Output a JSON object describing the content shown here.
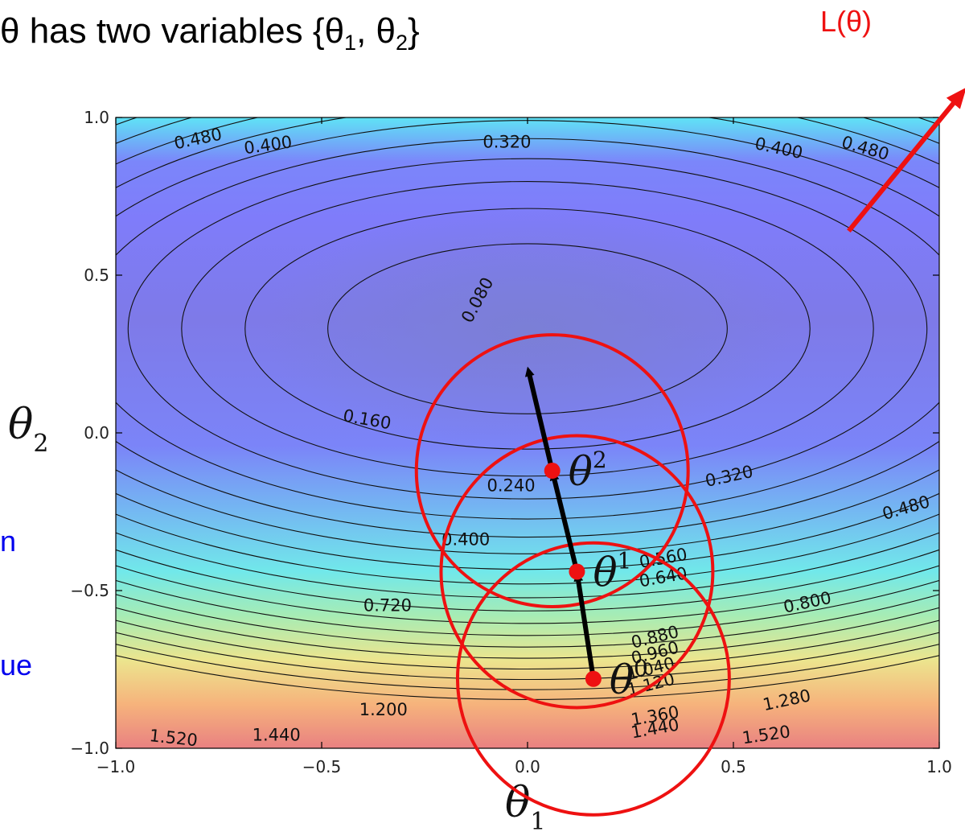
{
  "slide": {
    "title_main": "θ has two variables {θ",
    "title_sub1": "1",
    "title_mid": ", θ",
    "title_sub2": "2",
    "title_end": "}",
    "callout_label": "L(θ)",
    "left_fragment_1": "n",
    "left_fragment_2": "ue",
    "xaxis_symbol": "θ",
    "xaxis_sub": "1",
    "yaxis_symbol": "θ",
    "yaxis_sub": "2",
    "callout_color": "#ee1111",
    "fragment_color": "#0000ee"
  },
  "chart_data": {
    "type": "contour",
    "xlim": [
      -1.0,
      1.0
    ],
    "ylim": [
      -1.0,
      1.0
    ],
    "xticks": [
      "−1.0",
      "−0.5",
      "0.0",
      "0.5",
      "1.0"
    ],
    "yticks": [
      "1.0",
      "0.5",
      "0.0",
      "−0.5",
      "−1.0"
    ],
    "xtick_values": [
      -1.0,
      -0.5,
      0.0,
      0.5,
      1.0
    ],
    "ytick_values": [
      1.0,
      0.5,
      0.0,
      -0.5,
      -1.0
    ],
    "minimum": [
      0.0,
      0.33
    ],
    "contour_levels": [
      0.08,
      0.16,
      0.24,
      0.32,
      0.4,
      0.48,
      0.56,
      0.64,
      0.72,
      0.8,
      0.88,
      0.96,
      1.04,
      1.12,
      1.2,
      1.28,
      1.36,
      1.44,
      1.52
    ],
    "contour_labels": [
      {
        "text": "0.480",
        "x": -0.8,
        "y": 0.93,
        "rot": -12
      },
      {
        "text": "0.400",
        "x": -0.63,
        "y": 0.91,
        "rot": -8
      },
      {
        "text": "0.320",
        "x": -0.05,
        "y": 0.92,
        "rot": 0
      },
      {
        "text": "0.400",
        "x": 0.61,
        "y": 0.9,
        "rot": 12
      },
      {
        "text": "0.480",
        "x": 0.82,
        "y": 0.9,
        "rot": 16
      },
      {
        "text": "0.080",
        "x": -0.12,
        "y": 0.42,
        "rot": -62
      },
      {
        "text": "0.160",
        "x": -0.39,
        "y": 0.04,
        "rot": 10
      },
      {
        "text": "0.240",
        "x": -0.04,
        "y": -0.17,
        "rot": 0
      },
      {
        "text": "0.320",
        "x": 0.49,
        "y": -0.14,
        "rot": -12
      },
      {
        "text": "0.480",
        "x": 0.92,
        "y": -0.24,
        "rot": -16
      },
      {
        "text": "0.400",
        "x": -0.15,
        "y": -0.34,
        "rot": 0
      },
      {
        "text": "0.560",
        "x": 0.33,
        "y": -0.4,
        "rot": -10
      },
      {
        "text": "0.640",
        "x": 0.33,
        "y": -0.46,
        "rot": -10
      },
      {
        "text": "0.720",
        "x": -0.34,
        "y": -0.55,
        "rot": 0
      },
      {
        "text": "0.800",
        "x": 0.68,
        "y": -0.54,
        "rot": -12
      },
      {
        "text": "0.880",
        "x": 0.31,
        "y": -0.65,
        "rot": -14
      },
      {
        "text": "0.960",
        "x": 0.31,
        "y": -0.7,
        "rot": -14
      },
      {
        "text": "1.040",
        "x": 0.3,
        "y": -0.75,
        "rot": -14
      },
      {
        "text": "1.120",
        "x": 0.3,
        "y": -0.8,
        "rot": -14
      },
      {
        "text": "1.200",
        "x": -0.35,
        "y": -0.88,
        "rot": 0
      },
      {
        "text": "1.280",
        "x": 0.63,
        "y": -0.85,
        "rot": -12
      },
      {
        "text": "1.360",
        "x": 0.31,
        "y": -0.9,
        "rot": -10
      },
      {
        "text": "1.440",
        "x": 0.31,
        "y": -0.94,
        "rot": -10
      },
      {
        "text": "1.440",
        "x": -0.61,
        "y": -0.96,
        "rot": 0
      },
      {
        "text": "1.520",
        "x": -0.86,
        "y": -0.97,
        "rot": 6
      },
      {
        "text": "1.520",
        "x": 0.58,
        "y": -0.96,
        "rot": -8
      }
    ],
    "gradient_path": [
      {
        "label": "θ",
        "sup": "0",
        "x": 0.16,
        "y": -0.78
      },
      {
        "label": "θ",
        "sup": "1",
        "x": 0.12,
        "y": -0.44
      },
      {
        "label": "θ",
        "sup": "2",
        "x": 0.06,
        "y": -0.12
      }
    ],
    "gradient_final_point": {
      "x": 0.0,
      "y": 0.21
    },
    "circle_radius": 0.33,
    "arrow_color": "#000000",
    "point_color": "#ee1111",
    "circle_color": "#ee1111",
    "callout_arrow": {
      "from": [
        0.78,
        0.64
      ],
      "to": [
        1.05,
        1.07
      ]
    }
  }
}
